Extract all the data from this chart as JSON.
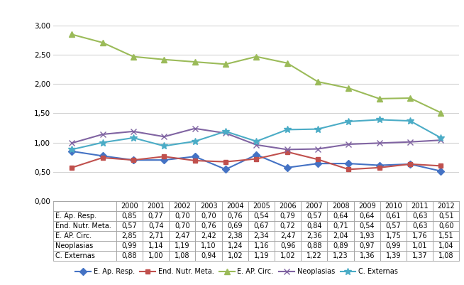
{
  "years": [
    2000,
    2001,
    2002,
    2003,
    2004,
    2005,
    2006,
    2007,
    2008,
    2009,
    2010,
    2011,
    2012
  ],
  "series_order": [
    "E. Ap. Resp.",
    "End. Nutr. Meta.",
    "E. AP. Circ.",
    "Neoplasias",
    "C. Externas"
  ],
  "series": {
    "E. Ap. Resp.": [
      0.85,
      0.77,
      0.7,
      0.7,
      0.76,
      0.54,
      0.79,
      0.57,
      0.64,
      0.64,
      0.61,
      0.63,
      0.51
    ],
    "End. Nutr. Meta.": [
      0.57,
      0.74,
      0.7,
      0.76,
      0.69,
      0.67,
      0.72,
      0.84,
      0.71,
      0.54,
      0.57,
      0.63,
      0.6
    ],
    "E. AP. Circ.": [
      2.85,
      2.71,
      2.47,
      2.42,
      2.38,
      2.34,
      2.47,
      2.36,
      2.04,
      1.93,
      1.75,
      1.76,
      1.51
    ],
    "Neoplasias": [
      0.99,
      1.14,
      1.19,
      1.1,
      1.24,
      1.16,
      0.96,
      0.88,
      0.89,
      0.97,
      0.99,
      1.01,
      1.04
    ],
    "C. Externas": [
      0.88,
      1.0,
      1.08,
      0.94,
      1.02,
      1.19,
      1.02,
      1.22,
      1.23,
      1.36,
      1.39,
      1.37,
      1.08
    ]
  },
  "colors": {
    "E. Ap. Resp.": "#4472C4",
    "End. Nutr. Meta.": "#C0504D",
    "E. AP. Circ.": "#9BBB59",
    "Neoplasias": "#8064A2",
    "C. Externas": "#4BACC6"
  },
  "markers": {
    "E. Ap. Resp.": "D",
    "End. Nutr. Meta.": "s",
    "E. AP. Circ.": "^",
    "Neoplasias": "x",
    "C. Externas": "*"
  },
  "table_row_labels": [
    "E. Ap. Resp.",
    "End. Nutr. Meta.",
    "E. AP. Circ.",
    "Neoplasias",
    "C. Externas"
  ],
  "table_rows": [
    [
      0.85,
      0.77,
      0.7,
      0.7,
      0.76,
      0.54,
      0.79,
      0.57,
      0.64,
      0.64,
      0.61,
      0.63,
      0.51
    ],
    [
      0.57,
      0.74,
      0.7,
      0.76,
      0.69,
      0.67,
      0.72,
      0.84,
      0.71,
      0.54,
      0.57,
      0.63,
      0.6
    ],
    [
      2.85,
      2.71,
      2.47,
      2.42,
      2.38,
      2.34,
      2.47,
      2.36,
      2.04,
      1.93,
      1.75,
      1.76,
      1.51
    ],
    [
      0.99,
      1.14,
      1.19,
      1.1,
      1.24,
      1.16,
      0.96,
      0.88,
      0.89,
      0.97,
      0.99,
      1.01,
      1.04
    ],
    [
      0.88,
      1.0,
      1.08,
      0.94,
      1.02,
      1.19,
      1.02,
      1.22,
      1.23,
      1.36,
      1.39,
      1.37,
      1.08
    ]
  ],
  "ylim": [
    0.0,
    3.0
  ],
  "yticks": [
    0.0,
    0.5,
    1.0,
    1.5,
    2.0,
    2.5,
    3.0
  ],
  "background_color": "#ffffff",
  "grid_color": "#d3d3d3",
  "table_border_color": "#a0a0a0",
  "marker_sizes": {
    "E. Ap. Resp.": 5,
    "End. Nutr. Meta.": 5,
    "E. AP. Circ.": 6,
    "Neoplasias": 6,
    "C. Externas": 7
  }
}
